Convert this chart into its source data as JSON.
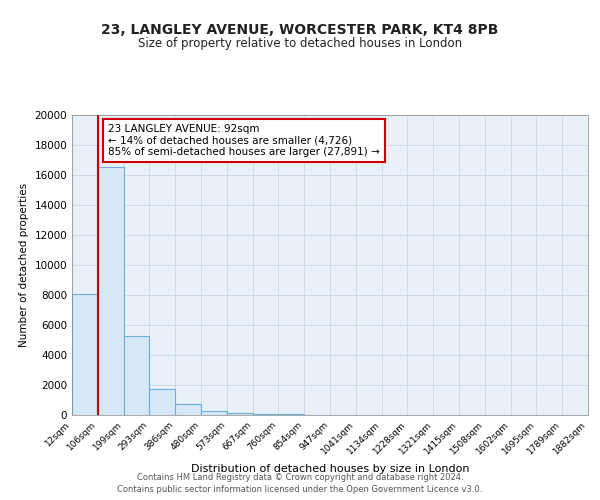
{
  "title": "23, LANGLEY AVENUE, WORCESTER PARK, KT4 8PB",
  "subtitle": "Size of property relative to detached houses in London",
  "xlabel": "Distribution of detached houses by size in London",
  "ylabel": "Number of detached properties",
  "bar_values": [
    8100,
    16500,
    5300,
    1750,
    750,
    300,
    150,
    100,
    50,
    0,
    0,
    0,
    0,
    0,
    0,
    0,
    0,
    0,
    0,
    0
  ],
  "bar_labels": [
    "12sqm",
    "106sqm",
    "199sqm",
    "293sqm",
    "386sqm",
    "480sqm",
    "573sqm",
    "667sqm",
    "760sqm",
    "854sqm",
    "947sqm",
    "1041sqm",
    "1134sqm",
    "1228sqm",
    "1321sqm",
    "1415sqm",
    "1508sqm",
    "1602sqm",
    "1695sqm",
    "1789sqm",
    "1882sqm"
  ],
  "bar_color": "#d6e8f7",
  "bar_edge_color": "#6baed6",
  "property_line_color": "#cc0000",
  "annotation_title": "23 LANGLEY AVENUE: 92sqm",
  "annotation_line1": "← 14% of detached houses are smaller (4,726)",
  "annotation_line2": "85% of semi-detached houses are larger (27,891) →",
  "annotation_box_facecolor": "#ffffff",
  "annotation_box_edgecolor": "#cc0000",
  "ylim": [
    0,
    20000
  ],
  "yticks": [
    0,
    2000,
    4000,
    6000,
    8000,
    10000,
    12000,
    14000,
    16000,
    18000,
    20000
  ],
  "grid_color": "#c8d8ea",
  "footer1": "Contains HM Land Registry data © Crown copyright and database right 2024.",
  "footer2": "Contains public sector information licensed under the Open Government Licence v3.0.",
  "plot_bg_color": "#e8f0f8",
  "fig_bg_color": "#ffffff"
}
